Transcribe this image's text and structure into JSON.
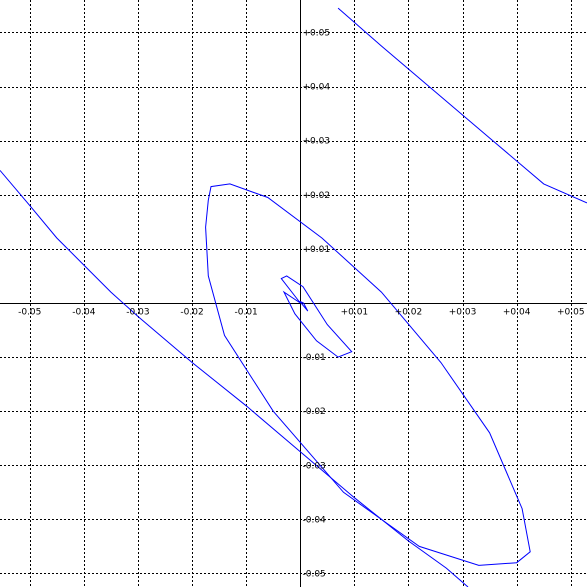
{
  "chart_data": {
    "type": "line",
    "title": "",
    "xlabel": "",
    "ylabel": "",
    "xlim": [
      -0.0555,
      0.053
    ],
    "ylim": [
      -0.0525,
      0.056
    ],
    "grid": true,
    "line_color": "#0000ff",
    "x_ticks": [
      {
        "value": -0.05,
        "label": "-0.05"
      },
      {
        "value": -0.04,
        "label": "-0.04"
      },
      {
        "value": -0.03,
        "label": "-0.03"
      },
      {
        "value": -0.02,
        "label": "-0.02"
      },
      {
        "value": -0.01,
        "label": "-0.01"
      },
      {
        "value": 0.01,
        "label": "+0.01"
      },
      {
        "value": 0.02,
        "label": "+0.02"
      },
      {
        "value": 0.03,
        "label": "+0.03"
      },
      {
        "value": 0.04,
        "label": "+0.04"
      },
      {
        "value": 0.05,
        "label": "+0.05"
      }
    ],
    "y_ticks": [
      {
        "value": 0.05,
        "label": "+0.05"
      },
      {
        "value": 0.04,
        "label": "+0.04"
      },
      {
        "value": 0.03,
        "label": "+0.03"
      },
      {
        "value": 0.02,
        "label": "+0.02"
      },
      {
        "value": 0.01,
        "label": "+0.01"
      },
      {
        "value": -0.01,
        "label": "-0.01"
      },
      {
        "value": -0.02,
        "label": "-0.02"
      },
      {
        "value": -0.03,
        "label": "-0.03"
      },
      {
        "value": -0.04,
        "label": "-0.04"
      },
      {
        "value": -0.05,
        "label": "-0.05"
      }
    ],
    "series": [
      {
        "values": [
          [
            0.0006,
            0.0
          ],
          [
            0.0014,
            -0.0015
          ],
          [
            -0.0001,
            0.0003
          ],
          [
            0.0006,
            0.0
          ]
        ]
      },
      {
        "values": [
          [
            0.0,
            0.0
          ],
          [
            -0.0035,
            0.0045
          ],
          [
            -0.0025,
            0.005
          ],
          [
            0.0005,
            0.003
          ],
          [
            0.005,
            -0.004
          ],
          [
            0.0095,
            -0.009
          ],
          [
            0.007,
            -0.01
          ],
          [
            0.003,
            -0.007
          ],
          [
            -0.001,
            -0.002
          ],
          [
            -0.003,
            0.002
          ],
          [
            0.0,
            0.0
          ]
        ]
      },
      {
        "values": [
          [
            -0.017,
            0.019
          ],
          [
            -0.0165,
            0.0215
          ],
          [
            -0.013,
            0.022
          ],
          [
            -0.006,
            0.0195
          ],
          [
            0.004,
            0.012
          ],
          [
            0.015,
            0.002
          ],
          [
            0.026,
            -0.011
          ],
          [
            0.035,
            -0.024
          ],
          [
            0.041,
            -0.038
          ],
          [
            0.0425,
            -0.046
          ],
          [
            0.04,
            -0.048
          ],
          [
            0.033,
            -0.0485
          ],
          [
            0.022,
            -0.045
          ],
          [
            0.008,
            -0.035
          ],
          [
            -0.005,
            -0.02
          ],
          [
            -0.014,
            -0.006
          ],
          [
            -0.017,
            0.005
          ],
          [
            -0.0175,
            0.014
          ],
          [
            -0.017,
            0.019
          ]
        ]
      },
      {
        "values": [
          [
            -0.0555,
            0.0245
          ],
          [
            -0.05,
            0.018
          ],
          [
            -0.045,
            0.012
          ],
          [
            -0.04,
            0.007
          ],
          [
            -0.035,
            0.002
          ],
          [
            -0.03,
            -0.0025
          ],
          [
            -0.02,
            -0.011
          ],
          [
            -0.01,
            -0.019
          ],
          [
            0.0,
            -0.0275
          ],
          [
            0.01,
            -0.036
          ],
          [
            0.02,
            -0.044
          ],
          [
            0.027,
            -0.049
          ],
          [
            0.031,
            -0.0525
          ]
        ]
      },
      {
        "values": [
          [
            0.007,
            0.0545
          ],
          [
            0.015,
            0.0475
          ],
          [
            0.025,
            0.039
          ],
          [
            0.035,
            0.0305
          ],
          [
            0.045,
            0.022
          ],
          [
            0.053,
            0.0185
          ]
        ]
      }
    ]
  }
}
